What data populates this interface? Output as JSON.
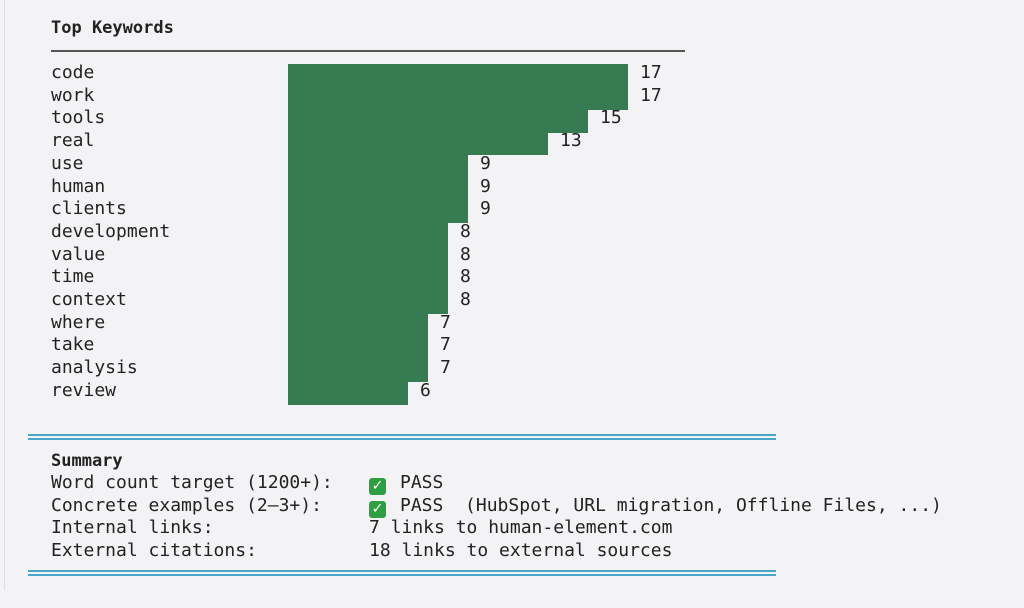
{
  "header": {
    "title": "Top Keywords"
  },
  "chart_data": {
    "type": "bar",
    "orientation": "horizontal",
    "categories": [
      "code",
      "work",
      "tools",
      "real",
      "use",
      "human",
      "clients",
      "development",
      "value",
      "time",
      "context",
      "where",
      "take",
      "analysis",
      "review"
    ],
    "values": [
      17,
      17,
      15,
      13,
      9,
      9,
      9,
      8,
      8,
      8,
      8,
      7,
      7,
      7,
      6
    ],
    "color": "#367b51"
  },
  "summary": {
    "title": "Summary",
    "rows": [
      {
        "label": "Word count target (1200+):",
        "status": "PASS",
        "icon": "check-icon",
        "detail": ""
      },
      {
        "label": "Concrete examples (2–3+):",
        "status": "PASS",
        "icon": "check-icon",
        "detail": "(HubSpot, URL migration, Offline Files, ...)"
      },
      {
        "label": "Internal links:",
        "status": "",
        "icon": "",
        "detail": "7 links to human-element.com"
      },
      {
        "label": "External citations:",
        "status": "",
        "icon": "",
        "detail": "18 links to external sources"
      }
    ]
  }
}
